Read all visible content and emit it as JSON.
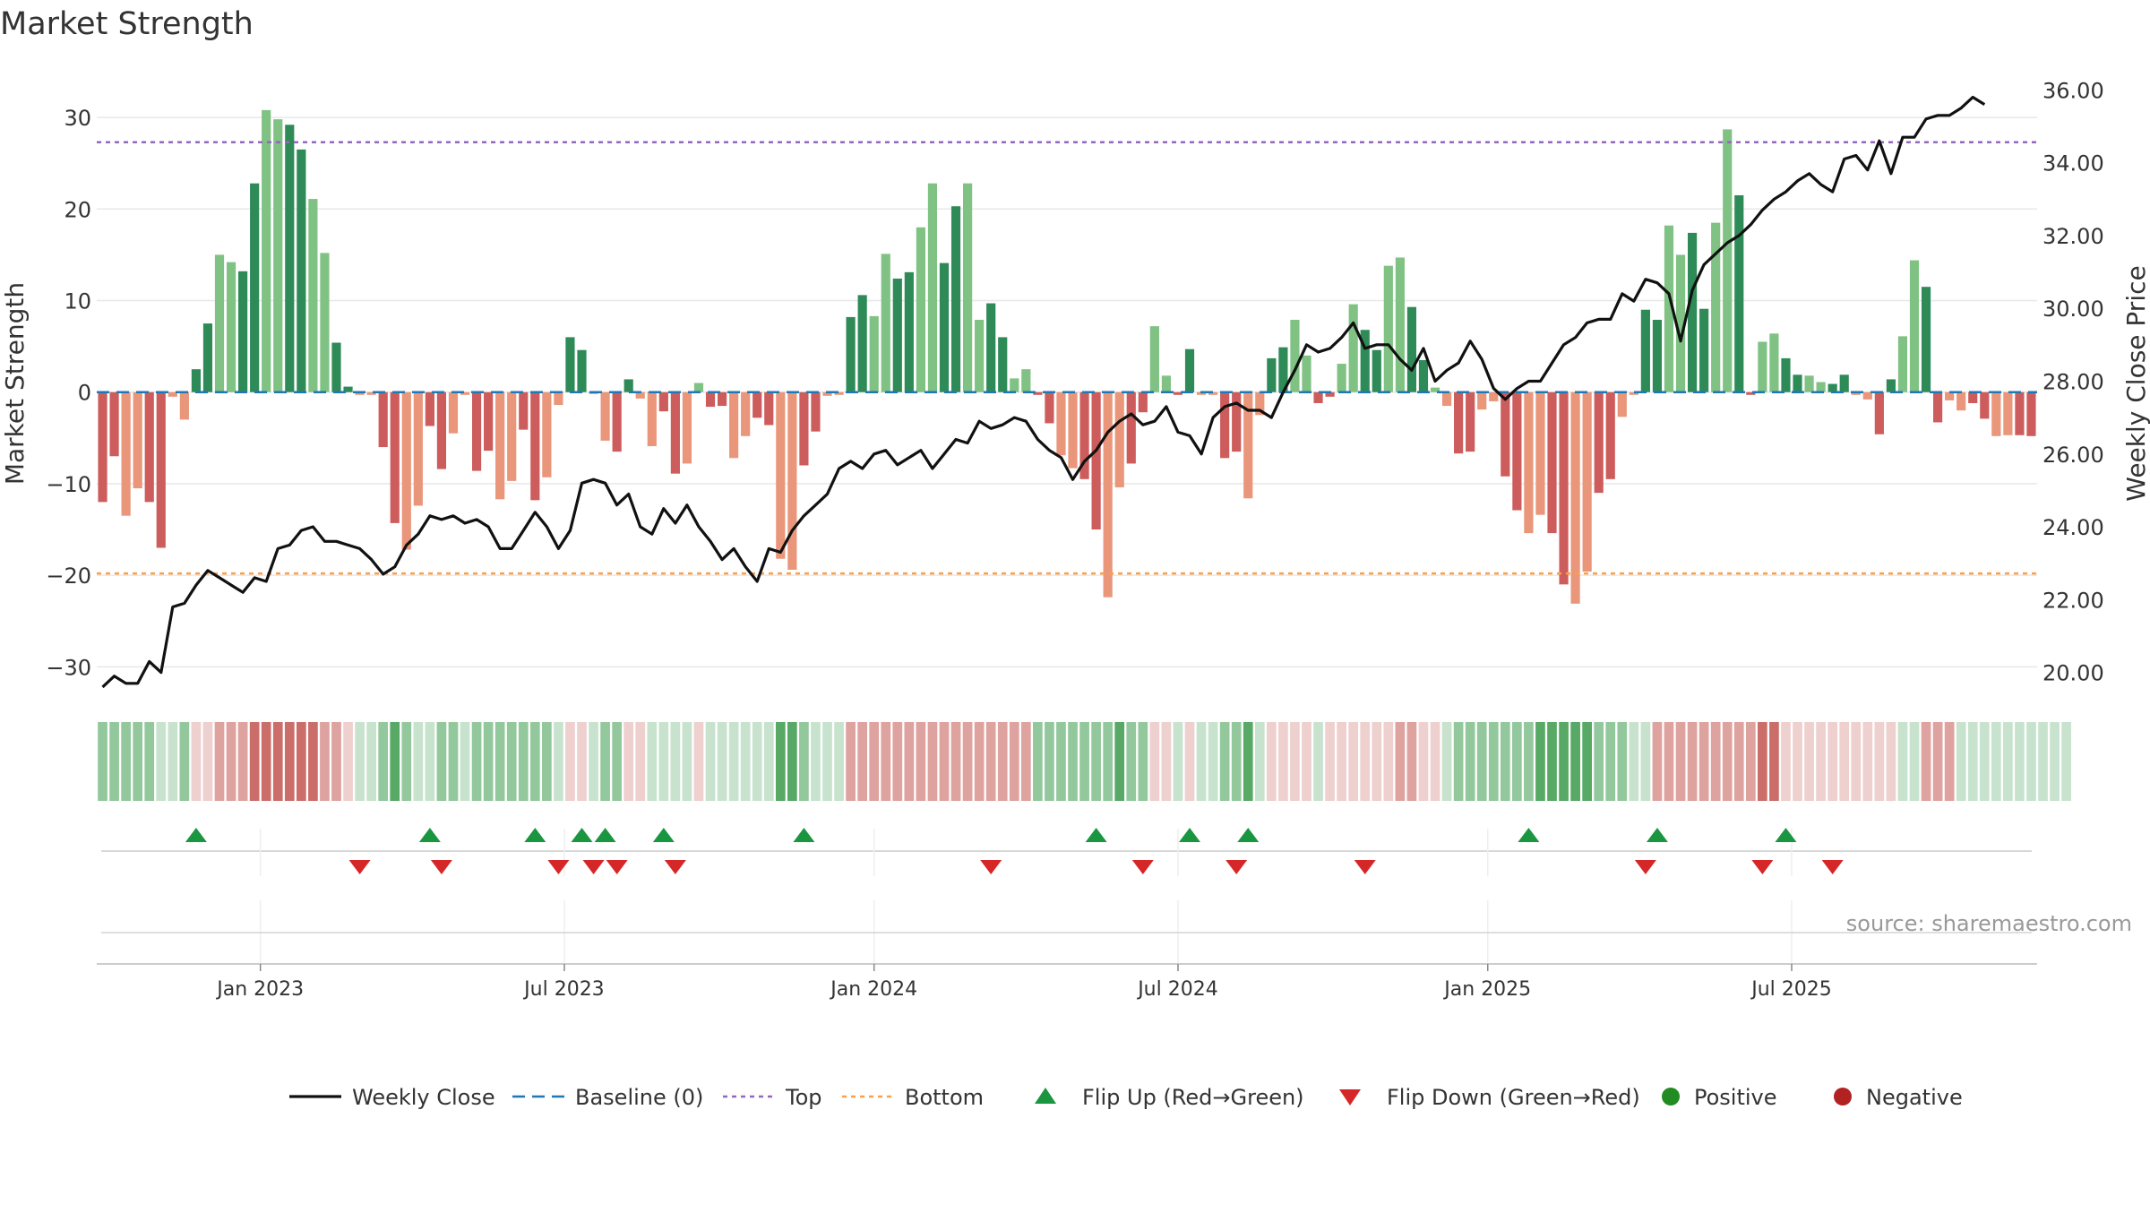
{
  "chart_data": {
    "type": "bar",
    "title": "Market Strength",
    "ylabel": "Market Strength",
    "y2label": "Weekly Close Price",
    "ylim": [
      -33,
      35
    ],
    "y2lim": [
      19.4,
      36.5
    ],
    "yticks": [
      30,
      20,
      10,
      0,
      -10,
      -20,
      -30
    ],
    "ytick_labels": [
      "30",
      "20",
      "10",
      "0",
      "−10",
      "−20",
      "−30"
    ],
    "y2ticks": [
      36,
      34,
      32,
      30,
      28,
      26,
      24,
      22,
      20
    ],
    "y2tick_labels": [
      "36.00",
      "34.00",
      "32.00",
      "30.00",
      "28.00",
      "26.00",
      "24.00",
      "22.00",
      "20.00"
    ],
    "x_dates": [
      {
        "label": "Jan 2023",
        "week": 14
      },
      {
        "label": "Jul 2023",
        "week": 40
      },
      {
        "label": "Jan 2024",
        "week": 66.5
      },
      {
        "label": "Jul 2024",
        "week": 92.5
      },
      {
        "label": "Jan 2025",
        "week": 119
      },
      {
        "label": "Jul 2025",
        "week": 145
      }
    ],
    "top_threshold": 27.3,
    "bottom_threshold": -19.8,
    "baseline": 0,
    "strength": [
      -12,
      -7,
      -13.5,
      -10.5,
      -12,
      -17,
      -0.5,
      -3,
      2.5,
      7.5,
      15,
      14.2,
      13.2,
      22.8,
      30.8,
      29.8,
      29.2,
      26.5,
      21.1,
      15.2,
      5.4,
      0.6,
      -0.3,
      -0.3,
      -6,
      -14.3,
      -17.2,
      -12.4,
      -3.7,
      -8.4,
      -4.5,
      -0.3,
      -8.6,
      -6.4,
      -11.7,
      -9.7,
      -4.1,
      -11.8,
      -9.3,
      -1.4,
      6,
      4.6,
      -0.2,
      -5.3,
      -6.5,
      1.4,
      -0.7,
      -5.9,
      -2.1,
      -8.9,
      -7.8,
      1,
      -1.6,
      -1.5,
      -7.2,
      -4.8,
      -2.8,
      -3.6,
      -18.2,
      -19.4,
      -8,
      -4.3,
      -0.4,
      -0.3,
      8.2,
      10.6,
      8.3,
      15.1,
      12.4,
      13.1,
      18,
      22.8,
      14.1,
      20.3,
      22.8,
      7.9,
      9.7,
      6,
      1.5,
      2.5,
      -0.3,
      -3.4,
      -6.9,
      -8.3,
      -9.5,
      -15,
      -22.4,
      -10.4,
      -7.8,
      -2.2,
      7.2,
      1.8,
      -0.3,
      4.7,
      -0.3,
      -0.3,
      -7.2,
      -6.5,
      -11.6,
      -2.5,
      3.7,
      4.9,
      7.9,
      4,
      -1.2,
      -0.5,
      3.1,
      9.6,
      6.8,
      4.6,
      13.8,
      14.7,
      9.3,
      3.5,
      0.5,
      -1.5,
      -6.7,
      -6.5,
      -1.9,
      -1,
      -9.2,
      -12.9,
      -15.4,
      -13.4,
      -15.4,
      -21,
      -23.1,
      -19.6,
      -11,
      -9.5,
      -2.7,
      -0.3,
      9,
      7.9,
      18.2,
      15,
      17.4,
      9.1,
      18.5,
      28.7,
      21.5,
      -0.3,
      5.5,
      6.4,
      3.7,
      1.9,
      1.8,
      1.1,
      0.9,
      1.9,
      -0.3,
      -0.8,
      -4.6,
      1.4,
      6.1,
      14.4,
      11.5,
      -3.3,
      -0.9,
      -2,
      -1.2,
      -2.9,
      -4.8,
      -4.7,
      -4.7,
      -4.8
    ],
    "weekly_close": [
      19.6,
      19.9,
      19.7,
      19.7,
      20.3,
      20.0,
      21.8,
      21.9,
      22.4,
      22.8,
      22.6,
      22.4,
      22.2,
      22.6,
      22.5,
      23.4,
      23.5,
      23.9,
      24.0,
      23.6,
      23.6,
      23.5,
      23.4,
      23.1,
      22.7,
      22.9,
      23.5,
      23.8,
      24.3,
      24.2,
      24.3,
      24.1,
      24.2,
      24.0,
      23.4,
      23.4,
      23.9,
      24.4,
      24.0,
      23.4,
      23.9,
      25.2,
      25.3,
      25.2,
      24.6,
      24.9,
      24.0,
      23.8,
      24.5,
      24.1,
      24.6,
      24.0,
      23.6,
      23.1,
      23.4,
      22.9,
      22.5,
      23.4,
      23.3,
      23.9,
      24.3,
      24.6,
      24.9,
      25.6,
      25.8,
      25.6,
      26.0,
      26.1,
      25.7,
      25.9,
      26.1,
      25.6,
      26.0,
      26.4,
      26.3,
      26.9,
      26.7,
      26.8,
      27.0,
      26.9,
      26.4,
      26.1,
      25.9,
      25.3,
      25.8,
      26.1,
      26.6,
      26.9,
      27.1,
      26.8,
      26.9,
      27.3,
      26.6,
      26.5,
      26.0,
      27.0,
      27.3,
      27.4,
      27.2,
      27.2,
      27.0,
      27.7,
      28.3,
      29.0,
      28.8,
      28.9,
      29.2,
      29.6,
      28.9,
      29.0,
      29.0,
      28.6,
      28.3,
      28.9,
      28.0,
      28.3,
      28.5,
      29.1,
      28.6,
      27.8,
      27.5,
      27.8,
      28.0,
      28.0,
      28.5,
      29.0,
      29.2,
      29.6,
      29.7,
      29.7,
      30.4,
      30.2,
      30.8,
      30.7,
      30.4,
      29.1,
      30.5,
      31.2,
      31.5,
      31.8,
      32.0,
      32.3,
      32.7,
      33.0,
      33.2,
      33.5,
      33.7,
      33.4,
      33.2,
      34.1,
      34.2,
      33.8,
      34.6,
      33.7,
      34.7,
      34.7,
      35.2,
      35.3,
      35.3,
      35.5,
      35.8,
      35.6
    ],
    "heat_levels": [
      2,
      2,
      2,
      2,
      2,
      1,
      1,
      2,
      -1,
      -1,
      -2,
      -2,
      -2,
      -3,
      -3,
      -3,
      -3,
      -3,
      -3,
      -2,
      -2,
      -1,
      1,
      1,
      2,
      3,
      2,
      1,
      1,
      2,
      2,
      1,
      2,
      2,
      2,
      2,
      2,
      2,
      2,
      1,
      -1,
      -1,
      1,
      2,
      2,
      -1,
      -1,
      1,
      1,
      1,
      1,
      -1,
      1,
      1,
      1,
      1,
      1,
      1,
      3,
      3,
      2,
      1,
      1,
      1,
      -2,
      -2,
      -2,
      -2,
      -2,
      -2,
      -2,
      -2,
      -2,
      -2,
      -2,
      -2,
      -2,
      -2,
      -2,
      -2,
      2,
      2,
      2,
      2,
      2,
      2,
      2,
      3,
      2,
      2,
      -1,
      -1,
      1,
      -1,
      1,
      1,
      2,
      2,
      3,
      1,
      -1,
      -1,
      -1,
      -1,
      1,
      -1,
      -1,
      -1,
      -1,
      -1,
      -1,
      -2,
      -2,
      -1,
      -1,
      1,
      2,
      2,
      2,
      2,
      2,
      2,
      2,
      3,
      3,
      3,
      3,
      3,
      2,
      2,
      2,
      1,
      1,
      -2,
      -2,
      -2,
      -2,
      -2,
      -2,
      -2,
      -2,
      -2,
      -3,
      -3,
      -1,
      -1,
      -1,
      -1,
      -1,
      -1,
      -1,
      -1,
      -1,
      -1,
      1,
      1,
      -2,
      -2,
      -2,
      1,
      1,
      1,
      1,
      1,
      1,
      1,
      1,
      1,
      1
    ],
    "flip_up_weeks": [
      8,
      28,
      37,
      41,
      43,
      48,
      60,
      85,
      93,
      98,
      122,
      133,
      144
    ],
    "flip_down_weeks": [
      22,
      29,
      39,
      42,
      44,
      49,
      76,
      89,
      97,
      108,
      132,
      142,
      148
    ],
    "legend": [
      {
        "key": "weekly_close",
        "label": "Weekly Close"
      },
      {
        "key": "baseline",
        "label": "Baseline (0)"
      },
      {
        "key": "top",
        "label": "Top"
      },
      {
        "key": "bottom",
        "label": "Bottom"
      },
      {
        "key": "flip_up",
        "label": "Flip Up (Red→Green)"
      },
      {
        "key": "flip_down",
        "label": "Flip Down (Green→Red)"
      },
      {
        "key": "positive",
        "label": "Positive"
      },
      {
        "key": "negative",
        "label": "Negative"
      }
    ],
    "source": "source: sharemaestro.com"
  },
  "colors": {
    "pos_strong": "#2e8b57",
    "pos_light": "#7fc283",
    "neg_strong": "#cd5c5c",
    "neg_light": "#e9967a",
    "line": "#111111",
    "baseline": "#1f77b4",
    "top": "#9467bd",
    "bottom": "#ff9f45",
    "flip_up": "#1a9641",
    "flip_down": "#d62728",
    "positive": "#228b22",
    "negative": "#b22222",
    "grid": "#e8e8e8",
    "text": "#333333"
  }
}
